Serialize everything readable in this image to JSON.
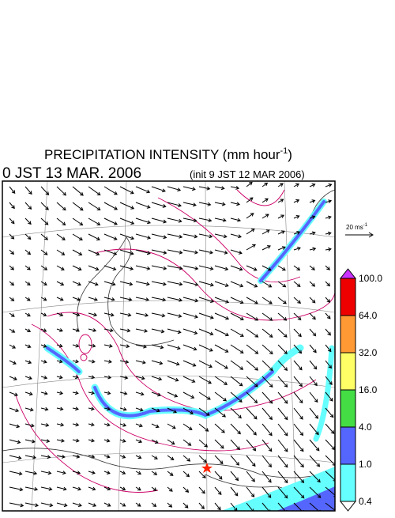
{
  "header": {
    "title": "PRECIPITATION INTENSITY (mm hour",
    "title_sup": "-1",
    "title_end": ")",
    "time": "0 JST 13 MAR. 2006",
    "init": "(init  9 JST 12 MAR  2006)"
  },
  "wind_scale": {
    "label": "20 ms",
    "label_sup": "-1"
  },
  "legend": {
    "levels": [
      {
        "value": 100,
        "label": "100.0"
      },
      {
        "value": 64,
        "label": "64.0"
      },
      {
        "value": 32,
        "label": "32.0"
      },
      {
        "value": 16,
        "label": "16.0"
      },
      {
        "value": 4,
        "label": "4.0"
      },
      {
        "value": 1,
        "label": "1.0"
      },
      {
        "value": 0.4,
        "label": "0.4"
      }
    ],
    "over_color": "#cc33ff",
    "colors": [
      "#ee0000",
      "#ff9933",
      "#ffff66",
      "#44dd44",
      "#5566ff",
      "#66ffff"
    ],
    "under_color": "#ffffff"
  }
}
